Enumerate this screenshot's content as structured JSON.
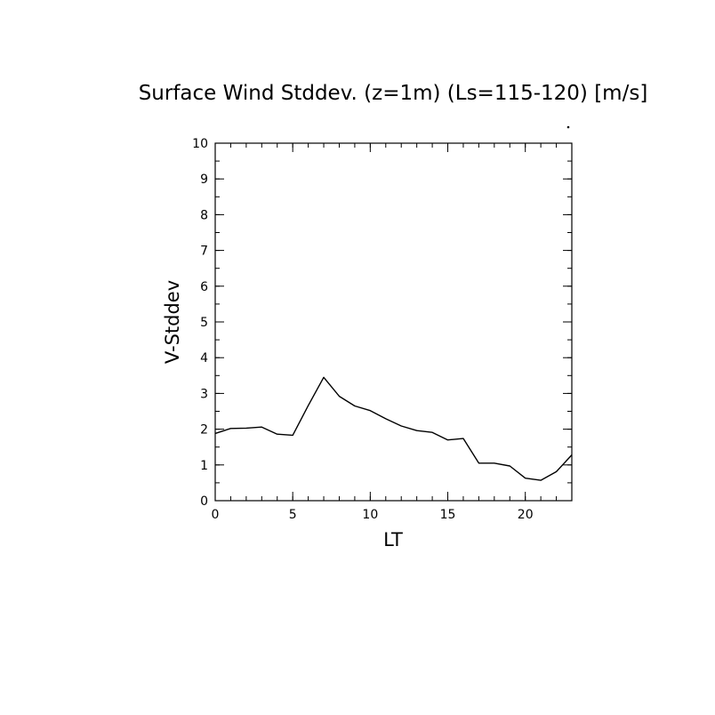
{
  "chart_data": {
    "type": "line",
    "title": "Surface Wind Stddev. (z=1m) (Ls=115-120) [m/s]",
    "xlabel": "LT",
    "ylabel": "V-Stddev",
    "xlim": [
      0,
      23
    ],
    "ylim": [
      0,
      10
    ],
    "x_major_ticks": [
      0,
      5,
      10,
      15,
      20
    ],
    "x_minor_step": 1,
    "y_major_ticks": [
      0,
      1,
      2,
      3,
      4,
      5,
      6,
      7,
      8,
      9,
      10
    ],
    "y_minor_step": 0.5,
    "grid": false,
    "legend": "none",
    "line_color": "#000000",
    "series": [
      {
        "x": [
          0,
          1,
          2,
          3,
          4,
          5,
          6,
          7,
          8,
          9,
          10,
          11,
          12,
          13,
          14,
          15,
          16,
          17,
          18,
          19,
          20,
          21,
          22,
          23
        ],
        "values": [
          1.88,
          2.02,
          2.03,
          2.06,
          1.86,
          1.83,
          2.66,
          3.45,
          2.92,
          2.65,
          2.52,
          2.29,
          2.09,
          1.96,
          1.91,
          1.7,
          1.74,
          1.05,
          1.05,
          0.97,
          0.63,
          0.57,
          0.81,
          1.28
        ]
      }
    ]
  }
}
